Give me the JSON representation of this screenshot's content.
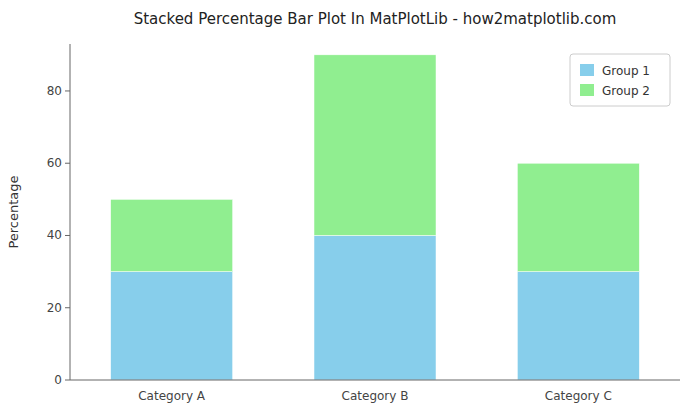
{
  "chart_data": {
    "type": "bar",
    "title": "Stacked Percentage Bar Plot In MatPlotLib - how2matplotlib.com",
    "ylabel": "Percentage",
    "categories": [
      "Category A",
      "Category B",
      "Category C"
    ],
    "series": [
      {
        "name": "Group 1",
        "color": "#87CEEB",
        "values": [
          30,
          40,
          30
        ]
      },
      {
        "name": "Group 2",
        "color": "#90EE90",
        "values": [
          20,
          50,
          30
        ]
      }
    ],
    "stacked": true,
    "ylim": [
      0,
      93
    ],
    "yticks": [
      0,
      20,
      40,
      60,
      80
    ],
    "legend": "upper right",
    "grid": false
  }
}
